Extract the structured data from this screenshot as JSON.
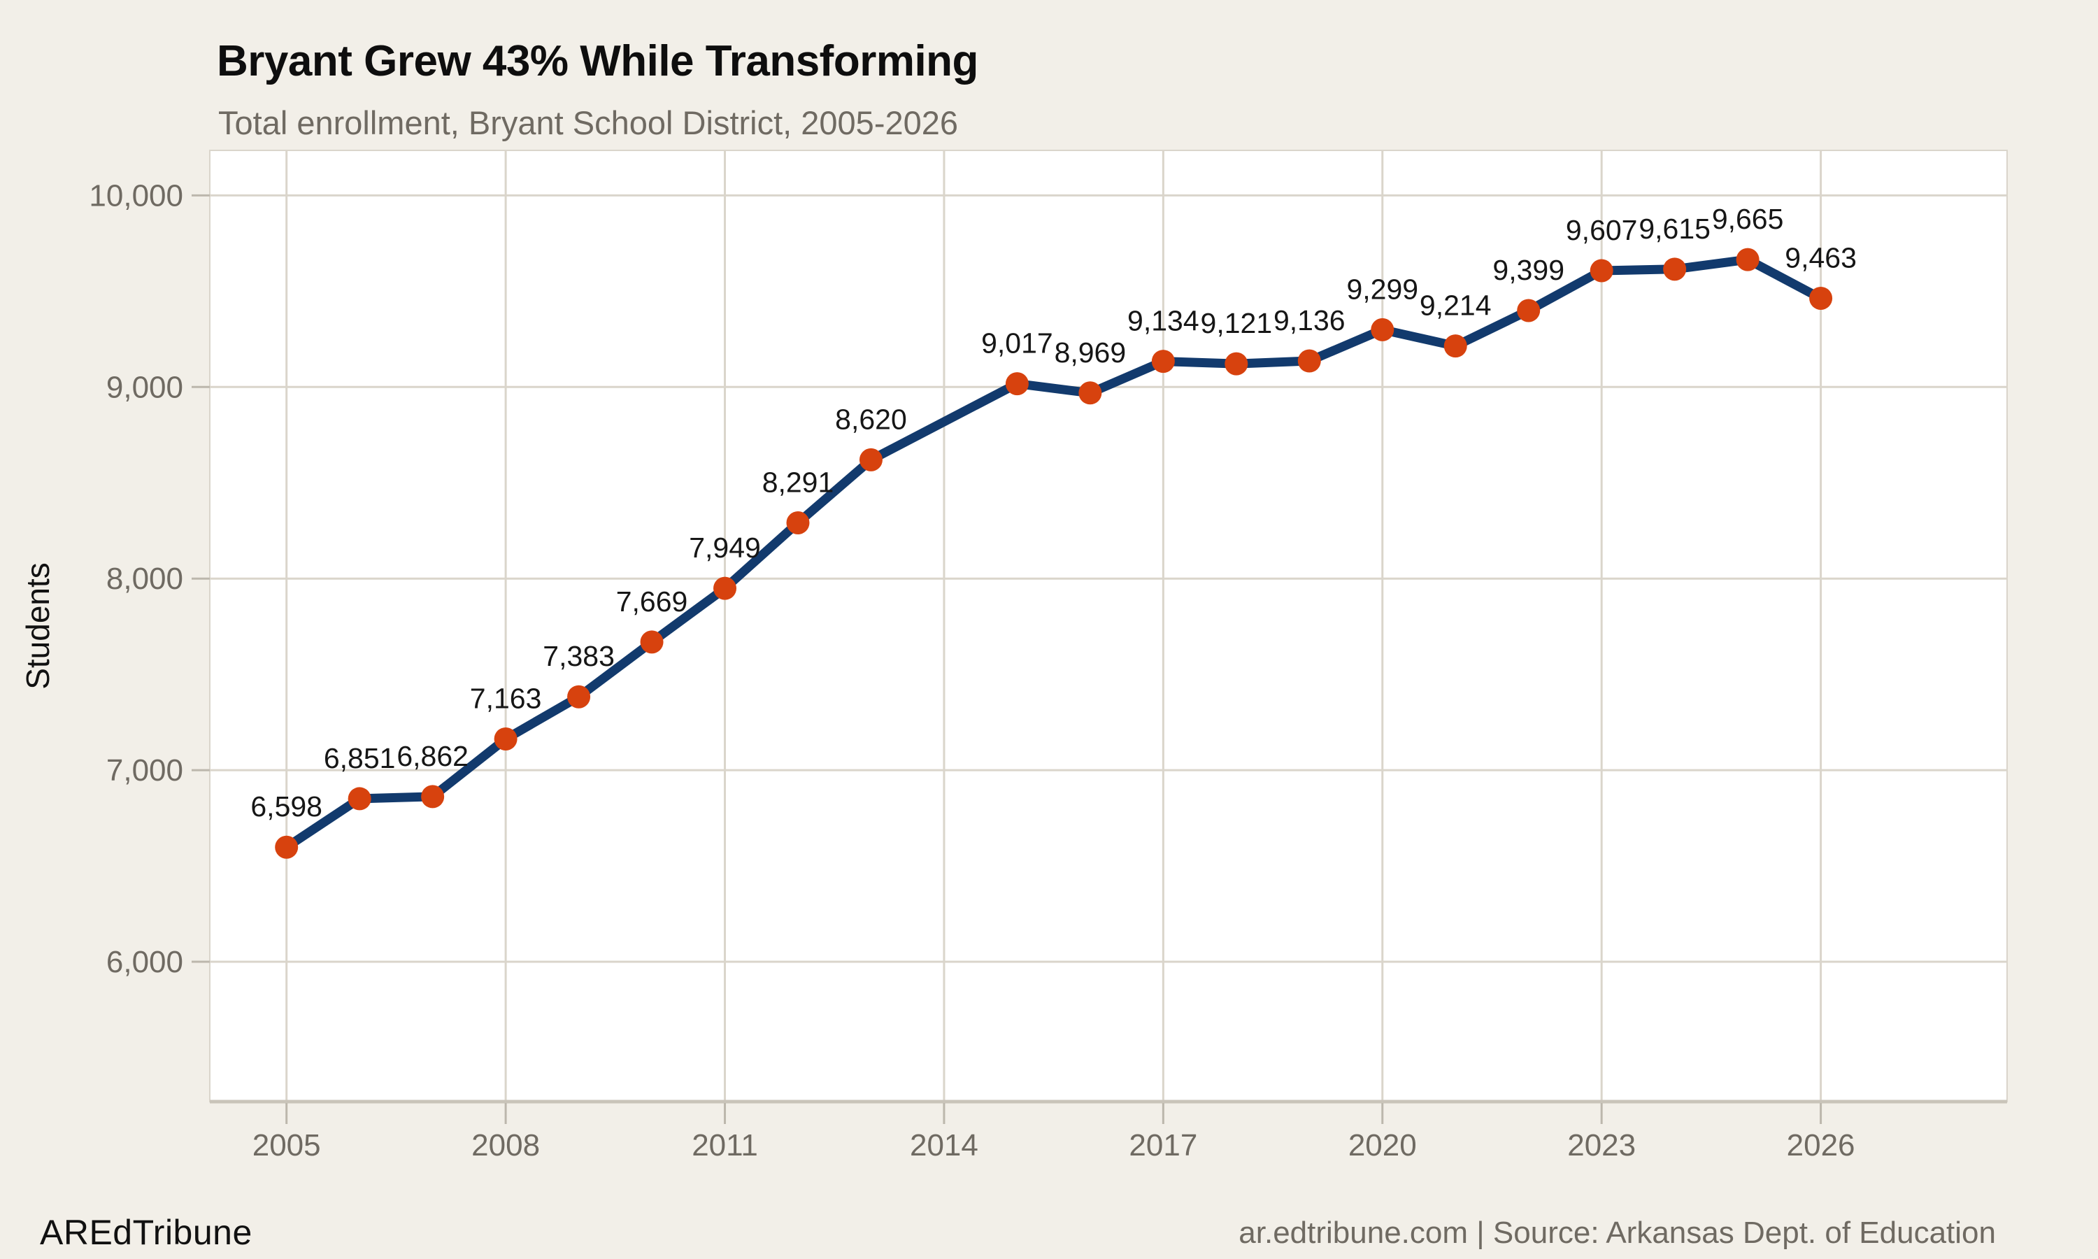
{
  "header": {
    "title": "Bryant Grew 43% While Transforming",
    "subtitle": "Total enrollment, Bryant School District, 2005-2026"
  },
  "footer": {
    "brand": "AREdTribune",
    "attribution": "ar.edtribune.com | Source: Arkansas Dept. of Education"
  },
  "chart_data": {
    "type": "line",
    "title": "Bryant Grew 43% While Transforming",
    "subtitle": "Total enrollment, Bryant School District, 2005-2026",
    "xlabel": "",
    "ylabel": "Students",
    "grid": true,
    "legend": "none",
    "gap_years": [
      2014
    ],
    "xlim": [
      2003.95,
      2028.55
    ],
    "ylim": [
      5270,
      10235
    ],
    "x_ticks": [
      {
        "value": 2005,
        "label": "2005"
      },
      {
        "value": 2008,
        "label": "2008"
      },
      {
        "value": 2011,
        "label": "2011"
      },
      {
        "value": 2014,
        "label": "2014"
      },
      {
        "value": 2017,
        "label": "2017"
      },
      {
        "value": 2020,
        "label": "2020"
      },
      {
        "value": 2023,
        "label": "2023"
      },
      {
        "value": 2026,
        "label": "2026"
      }
    ],
    "y_ticks": [
      {
        "value": 6000,
        "label": "6,000"
      },
      {
        "value": 7000,
        "label": "7,000"
      },
      {
        "value": 8000,
        "label": "8,000"
      },
      {
        "value": 9000,
        "label": "9,000"
      },
      {
        "value": 10000,
        "label": "10,000"
      }
    ],
    "series": [
      {
        "name": "Total enrollment",
        "points": [
          {
            "x": 2005,
            "y": 6598,
            "label": "6,598"
          },
          {
            "x": 2006,
            "y": 6851,
            "label": "6,851"
          },
          {
            "x": 2007,
            "y": 6862,
            "label": "6,862"
          },
          {
            "x": 2008,
            "y": 7163,
            "label": "7,163"
          },
          {
            "x": 2009,
            "y": 7383,
            "label": "7,383"
          },
          {
            "x": 2010,
            "y": 7669,
            "label": "7,669"
          },
          {
            "x": 2011,
            "y": 7949,
            "label": "7,949"
          },
          {
            "x": 2012,
            "y": 8291,
            "label": "8,291"
          },
          {
            "x": 2013,
            "y": 8620,
            "label": "8,620"
          },
          {
            "x": 2015,
            "y": 9017,
            "label": "9,017"
          },
          {
            "x": 2016,
            "y": 8969,
            "label": "8,969"
          },
          {
            "x": 2017,
            "y": 9134,
            "label": "9,134"
          },
          {
            "x": 2018,
            "y": 9121,
            "label": "9,121"
          },
          {
            "x": 2019,
            "y": 9136,
            "label": "9,136"
          },
          {
            "x": 2020,
            "y": 9299,
            "label": "9,299"
          },
          {
            "x": 2021,
            "y": 9214,
            "label": "9,214"
          },
          {
            "x": 2022,
            "y": 9399,
            "label": "9,399"
          },
          {
            "x": 2023,
            "y": 9607,
            "label": "9,607"
          },
          {
            "x": 2024,
            "y": 9615,
            "label": "9,615"
          },
          {
            "x": 2025,
            "y": 9665,
            "label": "9,665"
          },
          {
            "x": 2026,
            "y": 9463,
            "label": "9,463"
          }
        ]
      }
    ],
    "colors": {
      "background": "#f2efe8",
      "plot_background": "#ffffff",
      "grid": "#dad5cb",
      "axis_line": "#c9c4b9",
      "tick": "#bcb7ac",
      "line": "#123a6d",
      "point": "#d7420e",
      "axis_text": "#6f6a62",
      "data_label": "#161616",
      "axis_title": "#111111"
    }
  }
}
